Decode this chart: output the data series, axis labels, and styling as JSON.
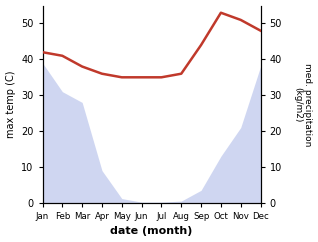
{
  "months": [
    "Jan",
    "Feb",
    "Mar",
    "Apr",
    "May",
    "Jun",
    "Jul",
    "Aug",
    "Sep",
    "Oct",
    "Nov",
    "Dec"
  ],
  "precipitation": [
    390,
    310,
    280,
    90,
    12,
    2,
    2,
    5,
    35,
    130,
    210,
    380
  ],
  "max_temp": [
    42,
    41,
    38,
    36,
    35,
    35,
    35,
    36,
    44,
    53,
    51,
    48
  ],
  "precip_color": "#b0bce8",
  "temp_color": "#c0392b",
  "temp_ylim": [
    0,
    55
  ],
  "precip_ylim": [
    0,
    550
  ],
  "precip_yticks": [
    0,
    100,
    200,
    300,
    400,
    500
  ],
  "precip_yticklabels": [
    "0",
    "10",
    "20",
    "30",
    "40",
    "50"
  ],
  "temp_yticks": [
    0,
    10,
    20,
    30,
    40,
    50
  ],
  "ylabel_left": "max temp (C)",
  "ylabel_right": "med. precipitation\n(kg/m2)",
  "xlabel": "date (month)",
  "bg_color": "#ffffff",
  "precip_fill_alpha": 0.6,
  "temp_linewidth": 1.8
}
